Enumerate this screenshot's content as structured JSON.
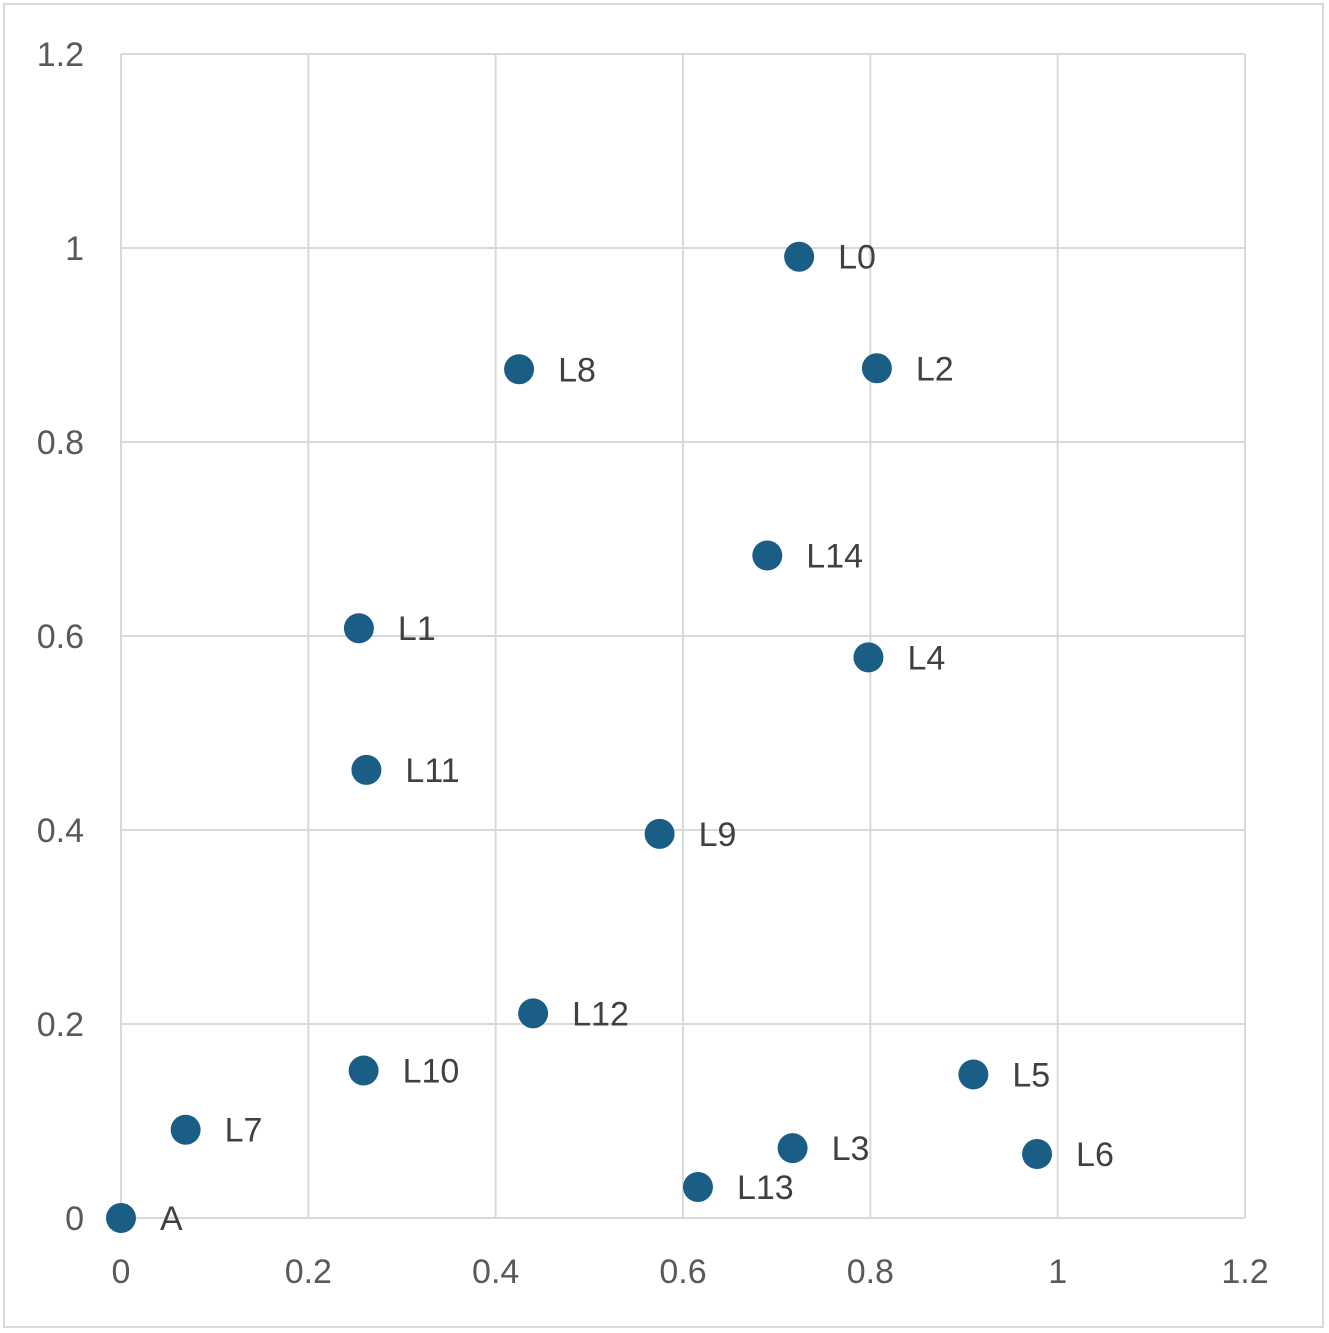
{
  "chart_data": {
    "type": "scatter",
    "title": "",
    "xlabel": "",
    "ylabel": "",
    "xlim": [
      0,
      1.2
    ],
    "ylim": [
      0,
      1.2
    ],
    "x_ticks": [
      "0",
      "0.2",
      "0.4",
      "0.6",
      "0.8",
      "1",
      "1.2"
    ],
    "y_ticks": [
      "0",
      "0.2",
      "0.4",
      "0.6",
      "0.8",
      "1",
      "1.2"
    ],
    "grid": true,
    "legend": "none",
    "marker_color": "#1a5e85",
    "points": [
      {
        "label": "A",
        "x": 0.0,
        "y": 0.0
      },
      {
        "label": "L0",
        "x": 0.724,
        "y": 0.991
      },
      {
        "label": "L1",
        "x": 0.254,
        "y": 0.608
      },
      {
        "label": "L2",
        "x": 0.807,
        "y": 0.876
      },
      {
        "label": "L3",
        "x": 0.717,
        "y": 0.072
      },
      {
        "label": "L4",
        "x": 0.798,
        "y": 0.578
      },
      {
        "label": "L5",
        "x": 0.91,
        "y": 0.148
      },
      {
        "label": "L6",
        "x": 0.978,
        "y": 0.066
      },
      {
        "label": "L7",
        "x": 0.069,
        "y": 0.091
      },
      {
        "label": "L8",
        "x": 0.425,
        "y": 0.875
      },
      {
        "label": "L9",
        "x": 0.575,
        "y": 0.396
      },
      {
        "label": "L10",
        "x": 0.259,
        "y": 0.152
      },
      {
        "label": "L11",
        "x": 0.262,
        "y": 0.462
      },
      {
        "label": "L12",
        "x": 0.44,
        "y": 0.211
      },
      {
        "label": "L13",
        "x": 0.616,
        "y": 0.032
      },
      {
        "label": "L14",
        "x": 0.69,
        "y": 0.683
      }
    ]
  }
}
